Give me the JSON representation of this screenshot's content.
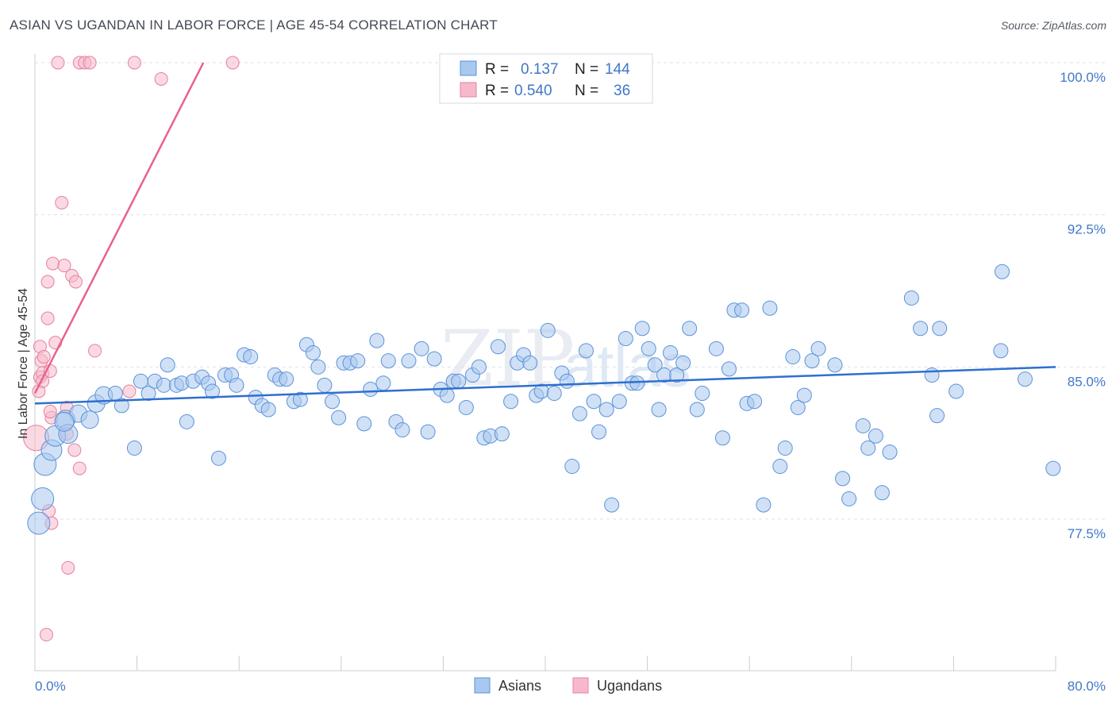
{
  "header": {
    "title": "ASIAN VS UGANDAN IN LABOR FORCE | AGE 45-54 CORRELATION CHART",
    "source": "Source: ZipAtlas.com"
  },
  "watermark": {
    "zip": "ZIP",
    "atlas": "atlas"
  },
  "colors": {
    "asian_fill": "#a9c8ef",
    "asian_stroke": "#5b92d8",
    "asian_line": "#2f6fcf",
    "ugandan_fill": "#f6b9cb",
    "ugandan_stroke": "#e97fa0",
    "ugandan_line": "#e8628e",
    "tick_text": "#3f78c7",
    "grid": "#dde2ea"
  },
  "legend": {
    "rows": [
      {
        "r_label": "R =",
        "r_value": "0.137",
        "n_label": "N =",
        "n_value": "144"
      },
      {
        "r_label": "R =",
        "r_value": "0.540",
        "n_label": "N =",
        "n_value": "36"
      }
    ]
  },
  "bottom_legend": {
    "asians": "Asians",
    "ugandans": "Ugandans"
  },
  "chart_data": {
    "type": "scatter",
    "title": "ASIAN VS UGANDAN IN LABOR FORCE | AGE 45-54 CORRELATION CHART",
    "xlabel": "",
    "ylabel": "In Labor Force | Age 45-54",
    "xlim": [
      0,
      80
    ],
    "ylim": [
      70.5,
      101.0
    ],
    "x_tick_labels": [
      "0.0%",
      "80.0%"
    ],
    "y_ticks": [
      77.5,
      85.0,
      92.5,
      100.0
    ],
    "y_tick_labels": [
      "77.5%",
      "85.0%",
      "92.5%",
      "100.0%"
    ],
    "grid": true,
    "series": [
      {
        "name": "Asians",
        "R": 0.137,
        "N": 144,
        "trend": {
          "x": [
            0,
            80
          ],
          "y": [
            83.2,
            85.0
          ]
        },
        "points": [
          [
            0.3,
            77.3
          ],
          [
            0.6,
            78.5
          ],
          [
            0.8,
            80.2
          ],
          [
            1.3,
            80.9
          ],
          [
            1.6,
            81.6
          ],
          [
            2.4,
            82.4
          ],
          [
            2.6,
            81.7
          ],
          [
            3.4,
            82.7
          ],
          [
            4.3,
            82.4
          ],
          [
            4.8,
            83.2
          ],
          [
            5.4,
            83.6
          ],
          [
            6.3,
            83.7
          ],
          [
            6.8,
            83.1
          ],
          [
            7.8,
            81.0
          ],
          [
            8.3,
            84.3
          ],
          [
            8.9,
            83.7
          ],
          [
            9.4,
            84.3
          ],
          [
            10.1,
            84.1
          ],
          [
            10.4,
            85.1
          ],
          [
            11.1,
            84.1
          ],
          [
            11.5,
            84.2
          ],
          [
            11.9,
            82.3
          ],
          [
            12.4,
            84.3
          ],
          [
            13.1,
            84.5
          ],
          [
            13.6,
            84.2
          ],
          [
            13.9,
            83.8
          ],
          [
            14.4,
            80.5
          ],
          [
            14.9,
            84.6
          ],
          [
            15.4,
            84.6
          ],
          [
            15.8,
            84.1
          ],
          [
            16.4,
            85.6
          ],
          [
            16.9,
            85.5
          ],
          [
            17.3,
            83.5
          ],
          [
            17.8,
            83.1
          ],
          [
            18.3,
            82.9
          ],
          [
            18.8,
            84.6
          ],
          [
            19.2,
            84.4
          ],
          [
            19.7,
            84.4
          ],
          [
            20.3,
            83.3
          ],
          [
            20.8,
            83.4
          ],
          [
            21.3,
            86.1
          ],
          [
            21.8,
            85.7
          ],
          [
            22.2,
            85.0
          ],
          [
            22.7,
            84.1
          ],
          [
            23.3,
            83.3
          ],
          [
            23.8,
            82.5
          ],
          [
            24.2,
            85.2
          ],
          [
            24.7,
            85.2
          ],
          [
            25.3,
            85.3
          ],
          [
            25.8,
            82.2
          ],
          [
            26.3,
            83.9
          ],
          [
            26.8,
            86.3
          ],
          [
            27.3,
            84.2
          ],
          [
            27.7,
            85.3
          ],
          [
            28.3,
            82.3
          ],
          [
            28.8,
            81.9
          ],
          [
            29.3,
            85.3
          ],
          [
            30.3,
            85.9
          ],
          [
            30.8,
            81.8
          ],
          [
            31.3,
            85.4
          ],
          [
            31.8,
            83.9
          ],
          [
            32.3,
            83.6
          ],
          [
            32.8,
            84.3
          ],
          [
            33.2,
            84.3
          ],
          [
            33.8,
            83.0
          ],
          [
            34.3,
            84.6
          ],
          [
            34.8,
            85.0
          ],
          [
            35.2,
            81.5
          ],
          [
            35.7,
            81.6
          ],
          [
            36.3,
            86.0
          ],
          [
            36.6,
            81.7
          ],
          [
            37.3,
            83.3
          ],
          [
            37.8,
            85.2
          ],
          [
            38.3,
            85.6
          ],
          [
            38.8,
            85.2
          ],
          [
            39.3,
            83.6
          ],
          [
            39.7,
            83.8
          ],
          [
            40.2,
            86.8
          ],
          [
            40.7,
            83.7
          ],
          [
            41.3,
            84.7
          ],
          [
            41.7,
            84.3
          ],
          [
            42.1,
            80.1
          ],
          [
            42.7,
            82.7
          ],
          [
            43.2,
            85.8
          ],
          [
            43.8,
            83.3
          ],
          [
            44.2,
            81.8
          ],
          [
            44.8,
            82.9
          ],
          [
            45.2,
            78.2
          ],
          [
            45.8,
            83.3
          ],
          [
            46.3,
            86.4
          ],
          [
            46.8,
            84.2
          ],
          [
            47.2,
            84.2
          ],
          [
            47.6,
            86.9
          ],
          [
            48.1,
            85.9
          ],
          [
            48.6,
            85.1
          ],
          [
            48.9,
            82.9
          ],
          [
            49.3,
            84.6
          ],
          [
            49.8,
            85.7
          ],
          [
            50.3,
            84.6
          ],
          [
            50.8,
            85.2
          ],
          [
            51.3,
            86.9
          ],
          [
            51.9,
            82.9
          ],
          [
            52.3,
            83.7
          ],
          [
            53.4,
            85.9
          ],
          [
            53.9,
            81.5
          ],
          [
            54.4,
            84.9
          ],
          [
            54.8,
            87.8
          ],
          [
            55.4,
            87.8
          ],
          [
            55.8,
            83.2
          ],
          [
            56.4,
            83.3
          ],
          [
            57.1,
            78.2
          ],
          [
            57.6,
            87.9
          ],
          [
            58.4,
            80.1
          ],
          [
            58.8,
            81.0
          ],
          [
            59.4,
            85.5
          ],
          [
            59.8,
            83.0
          ],
          [
            60.3,
            83.6
          ],
          [
            60.9,
            85.3
          ],
          [
            61.4,
            85.9
          ],
          [
            62.7,
            85.1
          ],
          [
            63.3,
            79.5
          ],
          [
            63.8,
            78.5
          ],
          [
            64.9,
            82.1
          ],
          [
            65.3,
            81.0
          ],
          [
            65.9,
            81.6
          ],
          [
            66.4,
            78.8
          ],
          [
            67.0,
            80.8
          ],
          [
            68.7,
            88.4
          ],
          [
            69.4,
            86.9
          ],
          [
            70.3,
            84.6
          ],
          [
            70.7,
            82.6
          ],
          [
            70.9,
            86.9
          ],
          [
            72.2,
            83.8
          ],
          [
            75.7,
            85.8
          ],
          [
            75.8,
            89.7
          ],
          [
            77.6,
            84.4
          ],
          [
            79.8,
            80.0
          ],
          [
            2.3,
            82.3
          ]
        ]
      },
      {
        "name": "Ugandans",
        "R": 0.54,
        "N": 36,
        "trend": {
          "x": [
            0,
            13.2
          ],
          "y": [
            83.7,
            100.0
          ]
        },
        "points": [
          [
            0.1,
            81.5
          ],
          [
            0.3,
            83.8
          ],
          [
            0.4,
            84.5
          ],
          [
            0.4,
            86.0
          ],
          [
            0.5,
            85.3
          ],
          [
            0.6,
            84.7
          ],
          [
            0.7,
            85.5
          ],
          [
            1.0,
            87.4
          ],
          [
            1.0,
            89.2
          ],
          [
            1.1,
            77.9
          ],
          [
            1.2,
            84.8
          ],
          [
            1.3,
            82.5
          ],
          [
            1.3,
            77.3
          ],
          [
            1.4,
            90.1
          ],
          [
            1.6,
            86.2
          ],
          [
            1.8,
            100.0
          ],
          [
            2.1,
            93.1
          ],
          [
            2.3,
            90.0
          ],
          [
            2.5,
            81.7
          ],
          [
            2.5,
            83.0
          ],
          [
            2.6,
            75.1
          ],
          [
            2.9,
            89.5
          ],
          [
            3.1,
            80.9
          ],
          [
            3.2,
            89.2
          ],
          [
            3.5,
            80.0
          ],
          [
            3.5,
            100.0
          ],
          [
            3.9,
            100.0
          ],
          [
            4.3,
            100.0
          ],
          [
            4.7,
            85.8
          ],
          [
            7.4,
            83.8
          ],
          [
            7.8,
            100.0
          ],
          [
            9.9,
            99.2
          ],
          [
            15.5,
            100.0
          ],
          [
            0.9,
            71.8
          ],
          [
            0.6,
            84.3
          ],
          [
            1.2,
            82.8
          ]
        ]
      }
    ]
  }
}
